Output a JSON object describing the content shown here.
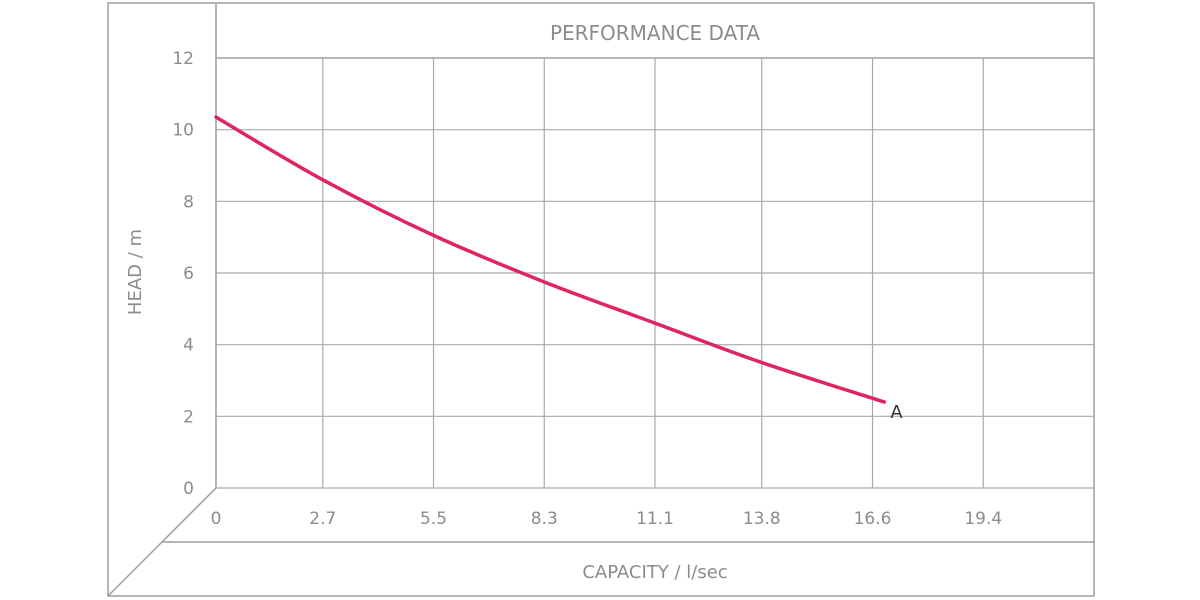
{
  "chart_data": {
    "type": "line",
    "title": "PERFORMANCE DATA",
    "xlabel": "CAPACITY / l/sec",
    "ylabel": "HEAD / m",
    "x_ticks": [
      "0",
      "2.7",
      "5.5",
      "8.3",
      "11.1",
      "13.8",
      "16.6",
      "19.4"
    ],
    "y_ticks": [
      "0",
      "2",
      "4",
      "6",
      "8",
      "10",
      "12"
    ],
    "xlim": [
      0,
      22.2
    ],
    "ylim": [
      0,
      12
    ],
    "grid": true,
    "series": [
      {
        "name": "A",
        "color": "#e0245e",
        "x": [
          0,
          2.7,
          5.5,
          8.3,
          11.1,
          13.8,
          16.9
        ],
        "y": [
          10.35,
          8.6,
          7.05,
          5.75,
          4.6,
          3.5,
          2.4
        ]
      }
    ]
  }
}
